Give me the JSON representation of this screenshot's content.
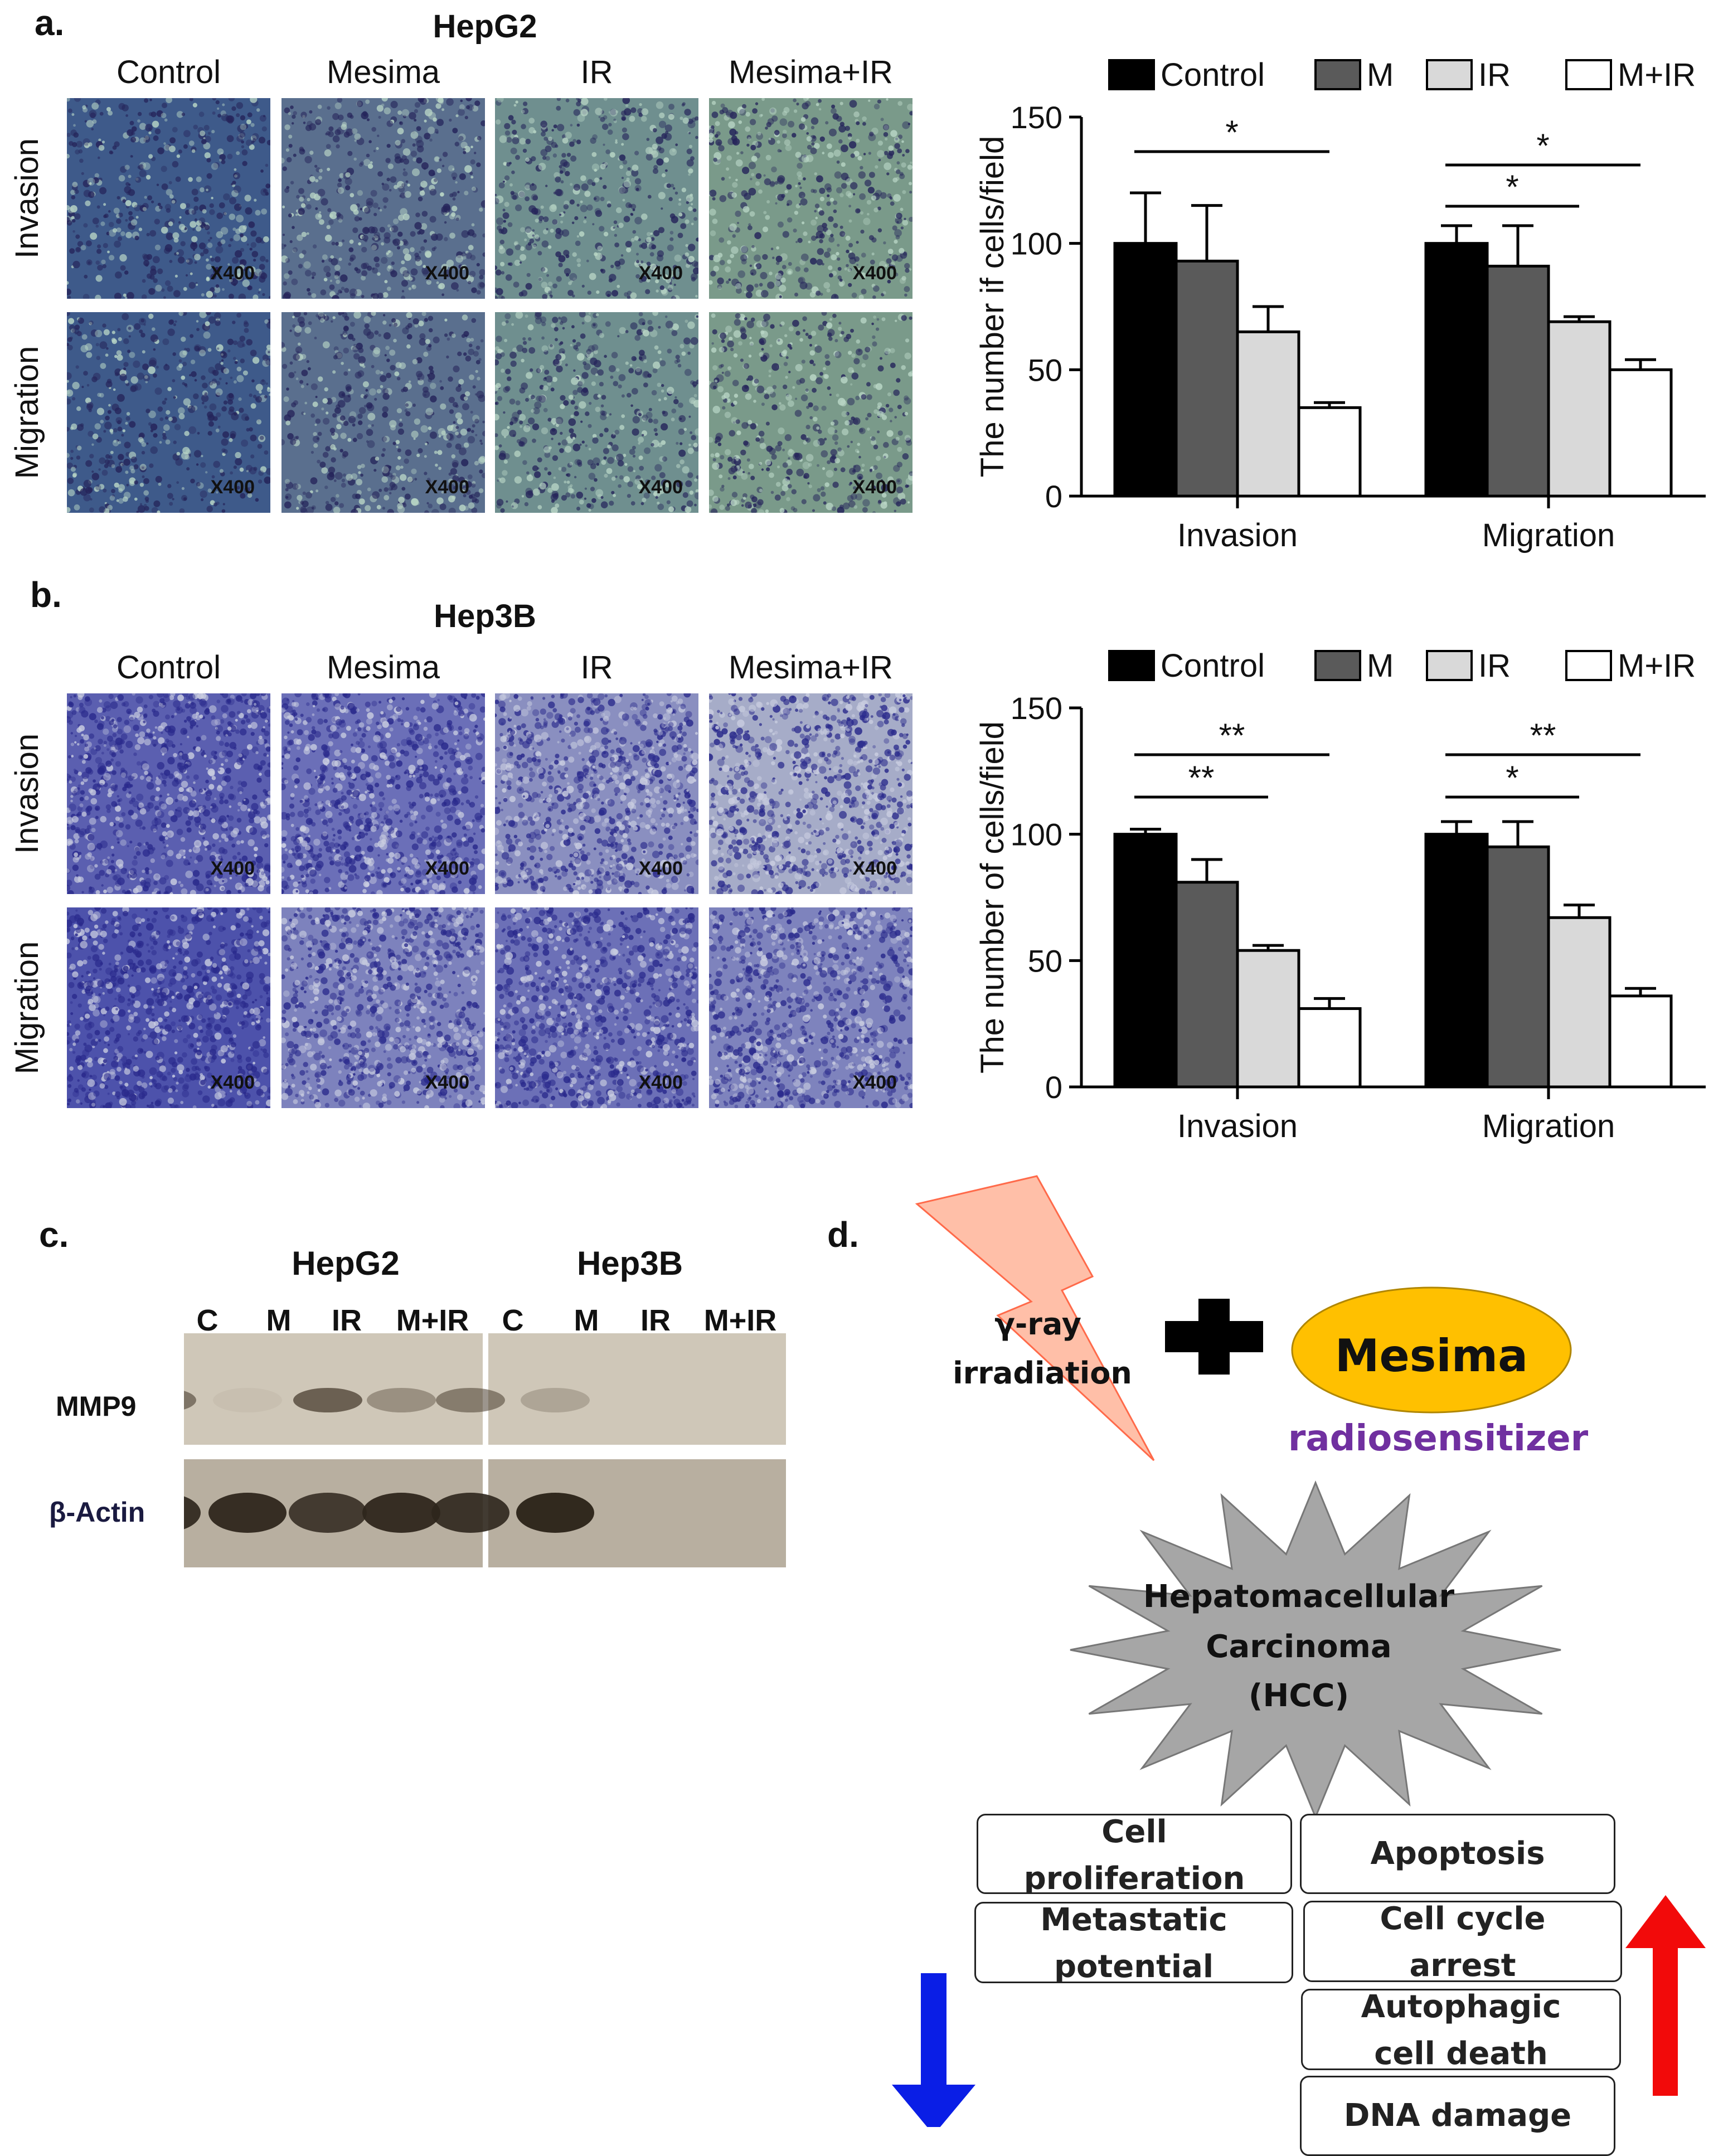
{
  "panel_a": {
    "label": "a.",
    "cell_line": "HepG2",
    "columns": [
      "Control",
      "Mesima",
      "IR",
      "Mesima+IR"
    ],
    "rows": [
      "Invasion",
      "Migration"
    ],
    "magnification": "X400",
    "legend": [
      "Control",
      "M",
      "IR",
      "M+IR"
    ],
    "ylabel": "The number if cells/field",
    "significance": [
      "*",
      "*",
      "*"
    ]
  },
  "panel_b": {
    "label": "b.",
    "cell_line": "Hep3B",
    "columns": [
      "Control",
      "Mesima",
      "IR",
      "Mesima+IR"
    ],
    "rows": [
      "Invasion",
      "Migration"
    ],
    "magnification": "X400",
    "legend": [
      "Control",
      "M",
      "IR",
      "M+IR"
    ],
    "ylabel": "The number of cells/field",
    "significance": [
      "**",
      "**",
      "**",
      "*"
    ]
  },
  "chart_data": [
    {
      "type": "bar",
      "categories": [
        "Invasion",
        "Migration"
      ],
      "ylabel": "The number if cells/field",
      "ylim": [
        0,
        150
      ],
      "yticks": [
        0,
        50,
        100,
        150
      ],
      "legend_position": "top",
      "series": [
        {
          "name": "Control",
          "color": "#000000",
          "values": [
            100,
            100
          ],
          "errors": [
            20,
            7
          ]
        },
        {
          "name": "M",
          "color": "#5a5a5a",
          "values": [
            93,
            91
          ],
          "errors": [
            22,
            16
          ]
        },
        {
          "name": "IR",
          "color": "#d9d9d9",
          "values": [
            65,
            69
          ],
          "errors": [
            10,
            2
          ]
        },
        {
          "name": "M+IR",
          "color": "#ffffff",
          "values": [
            35,
            50
          ],
          "errors": [
            2,
            4
          ]
        }
      ]
    },
    {
      "type": "bar",
      "categories": [
        "Invasion",
        "Migration"
      ],
      "ylabel": "The number of cells/field",
      "ylim": [
        0,
        150
      ],
      "yticks": [
        0,
        50,
        100,
        150
      ],
      "legend_position": "top",
      "series": [
        {
          "name": "Control",
          "color": "#000000",
          "values": [
            100,
            100
          ],
          "errors": [
            2,
            5
          ]
        },
        {
          "name": "M",
          "color": "#5a5a5a",
          "values": [
            81,
            95
          ],
          "errors": [
            9,
            10
          ]
        },
        {
          "name": "IR",
          "color": "#d9d9d9",
          "values": [
            54,
            67
          ],
          "errors": [
            2,
            5
          ]
        },
        {
          "name": "M+IR",
          "color": "#ffffff",
          "values": [
            31,
            36
          ],
          "errors": [
            4,
            3
          ]
        }
      ]
    }
  ],
  "panel_c": {
    "label": "c.",
    "groups": [
      "HepG2",
      "Hep3B"
    ],
    "lanes": [
      "C",
      "M",
      "IR",
      "M+IR",
      "C",
      "M",
      "IR",
      "M+IR"
    ],
    "proteins": [
      "MMP9",
      "β-Actin"
    ]
  },
  "panel_d": {
    "label": "d.",
    "irradiation": [
      "γ-ray",
      "irradiation"
    ],
    "drug": "Mesima",
    "drug_role": "radiosensitizer",
    "target": [
      "Hepatomacellular",
      "Carcinoma",
      "(HCC)"
    ],
    "decreased": [
      [
        "Cell",
        "proliferation"
      ],
      [
        "Metastatic",
        "potential"
      ]
    ],
    "increased": [
      [
        "Apoptosis"
      ],
      [
        "Cell cycle",
        "arrest"
      ],
      [
        "Autophagic",
        "cell death"
      ],
      [
        "DNA damage"
      ]
    ],
    "colors": {
      "down_arrow": "#0a1ee6",
      "up_arrow": "#f20a0a",
      "drug_fill": "#ffc000",
      "role_text": "#7030a0",
      "bolt": "#ffbfa8"
    }
  }
}
